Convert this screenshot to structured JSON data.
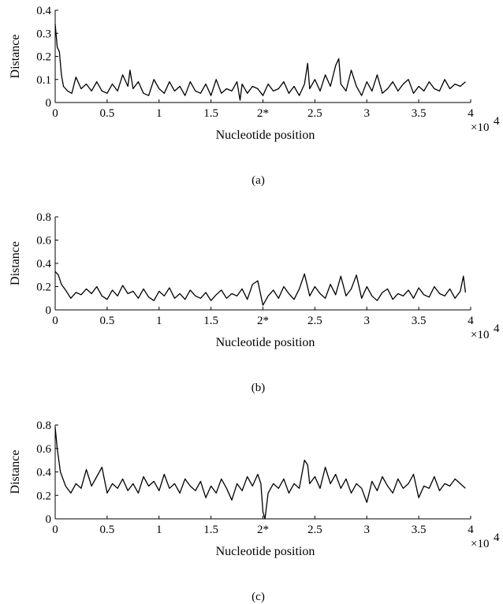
{
  "chart_data": [
    {
      "type": "line",
      "caption": "(a)",
      "xlabel": "Nucleotide position",
      "ylabel": "Distance",
      "x_multiplier": "×10",
      "x_exponent": "4",
      "xlim": [
        0,
        40000
      ],
      "ylim": [
        0,
        0.4
      ],
      "x_ticks": [
        "0",
        "0.5",
        "1",
        "1.5",
        "2*",
        "2.5",
        "3",
        "3.5",
        "4"
      ],
      "y_ticks": [
        "0",
        "0.1",
        "0.2",
        "0.3",
        "0.4"
      ],
      "series": [
        {
          "x": [
            0,
            200,
            400,
            600,
            800,
            1200,
            1600,
            2000,
            2500,
            3000,
            3500,
            4000,
            4500,
            5000,
            5500,
            6000,
            6500,
            7000,
            7200,
            7500,
            8000,
            8500,
            9000,
            9500,
            10000,
            10500,
            11000,
            11500,
            12000,
            12500,
            13000,
            13500,
            14000,
            14500,
            15000,
            15500,
            16000,
            16500,
            17000,
            17500,
            17800,
            18000,
            18500,
            19000,
            19500,
            20000,
            20500,
            21000,
            21500,
            22000,
            22500,
            23000,
            23500,
            24000,
            24300,
            24500,
            25000,
            25500,
            26000,
            26500,
            27000,
            27300,
            27500,
            28000,
            28500,
            29000,
            29500,
            30000,
            30500,
            31000,
            31500,
            32000,
            32500,
            33000,
            33500,
            34000,
            34500,
            35000,
            35500,
            36000,
            36500,
            37000,
            37500,
            38000,
            38500,
            39000,
            39500
          ],
          "y": [
            0.34,
            0.24,
            0.22,
            0.12,
            0.07,
            0.05,
            0.04,
            0.11,
            0.06,
            0.08,
            0.05,
            0.09,
            0.05,
            0.04,
            0.08,
            0.05,
            0.12,
            0.07,
            0.14,
            0.06,
            0.09,
            0.04,
            0.03,
            0.1,
            0.06,
            0.04,
            0.09,
            0.05,
            0.07,
            0.03,
            0.09,
            0.05,
            0.04,
            0.08,
            0.03,
            0.1,
            0.04,
            0.06,
            0.05,
            0.09,
            0.01,
            0.08,
            0.04,
            0.07,
            0.06,
            0.03,
            0.08,
            0.05,
            0.06,
            0.09,
            0.04,
            0.07,
            0.03,
            0.08,
            0.17,
            0.06,
            0.1,
            0.05,
            0.12,
            0.07,
            0.16,
            0.19,
            0.08,
            0.05,
            0.14,
            0.07,
            0.03,
            0.09,
            0.05,
            0.12,
            0.04,
            0.06,
            0.09,
            0.05,
            0.08,
            0.1,
            0.04,
            0.07,
            0.05,
            0.09,
            0.06,
            0.05,
            0.1,
            0.06,
            0.08,
            0.07,
            0.09
          ]
        }
      ]
    },
    {
      "type": "line",
      "caption": "(b)",
      "xlabel": "Nucleotide position",
      "ylabel": "Distance",
      "x_multiplier": "×10",
      "x_exponent": "4",
      "xlim": [
        0,
        40000
      ],
      "ylim": [
        0,
        0.8
      ],
      "x_ticks": [
        "0",
        "0.5",
        "1",
        "1.5",
        "2*",
        "2.5",
        "3",
        "3.5",
        "4"
      ],
      "y_ticks": [
        "0",
        "0.2",
        "0.4",
        "0.6",
        "0.8"
      ],
      "series": [
        {
          "x": [
            0,
            300,
            600,
            1000,
            1500,
            2000,
            2500,
            3000,
            3500,
            4000,
            4500,
            5000,
            5500,
            6000,
            6500,
            7000,
            7500,
            8000,
            8500,
            9000,
            9500,
            10000,
            10500,
            11000,
            11500,
            12000,
            12500,
            13000,
            13500,
            14000,
            14500,
            15000,
            15500,
            16000,
            16500,
            17000,
            17500,
            18000,
            18500,
            19000,
            19500,
            20000,
            20500,
            21000,
            21500,
            22000,
            22500,
            23000,
            23500,
            24000,
            24500,
            25000,
            25500,
            26000,
            26500,
            27000,
            27500,
            28000,
            28500,
            29000,
            29500,
            30000,
            30500,
            31000,
            31500,
            32000,
            32500,
            33000,
            33500,
            34000,
            34500,
            35000,
            35500,
            36000,
            36500,
            37000,
            37500,
            38000,
            38500,
            39000,
            39300,
            39500
          ],
          "y": [
            0.33,
            0.3,
            0.22,
            0.17,
            0.1,
            0.15,
            0.13,
            0.18,
            0.14,
            0.2,
            0.12,
            0.09,
            0.17,
            0.12,
            0.21,
            0.14,
            0.16,
            0.1,
            0.18,
            0.11,
            0.08,
            0.16,
            0.12,
            0.19,
            0.1,
            0.14,
            0.09,
            0.17,
            0.12,
            0.1,
            0.15,
            0.08,
            0.13,
            0.17,
            0.1,
            0.14,
            0.12,
            0.18,
            0.09,
            0.22,
            0.25,
            0.04,
            0.12,
            0.17,
            0.1,
            0.2,
            0.14,
            0.09,
            0.18,
            0.31,
            0.12,
            0.2,
            0.14,
            0.1,
            0.22,
            0.13,
            0.29,
            0.12,
            0.18,
            0.3,
            0.1,
            0.2,
            0.12,
            0.08,
            0.15,
            0.18,
            0.09,
            0.14,
            0.12,
            0.17,
            0.1,
            0.19,
            0.13,
            0.11,
            0.2,
            0.14,
            0.12,
            0.18,
            0.1,
            0.16,
            0.29,
            0.15
          ]
        }
      ]
    },
    {
      "type": "line",
      "caption": "(c)",
      "xlabel": "Nucleotide position",
      "ylabel": "Distance",
      "x_multiplier": "×10",
      "x_exponent": "4",
      "xlim": [
        0,
        40000
      ],
      "ylim": [
        0,
        0.8
      ],
      "x_ticks": [
        "0",
        "0.5",
        "1",
        "1.5",
        "2*",
        "2.5",
        "3",
        "3.5",
        "4"
      ],
      "y_ticks": [
        "0",
        "0.2",
        "0.4",
        "0.6",
        "0.8"
      ],
      "series": [
        {
          "x": [
            0,
            200,
            500,
            1000,
            1500,
            2000,
            2500,
            3000,
            3500,
            4000,
            4500,
            5000,
            5500,
            6000,
            6500,
            7000,
            7500,
            8000,
            8500,
            9000,
            9500,
            10000,
            10500,
            11000,
            11500,
            12000,
            12500,
            13000,
            13500,
            14000,
            14500,
            15000,
            15500,
            16000,
            16500,
            17000,
            17500,
            18000,
            18500,
            19000,
            19500,
            19800,
            20000,
            20200,
            20500,
            21000,
            21500,
            22000,
            22500,
            23000,
            23500,
            24000,
            24300,
            24500,
            25000,
            25500,
            26000,
            26500,
            27000,
            27500,
            28000,
            28500,
            29000,
            29500,
            30000,
            30500,
            31000,
            31500,
            32000,
            32500,
            33000,
            33500,
            34000,
            34500,
            35000,
            35500,
            36000,
            36500,
            37000,
            37500,
            38000,
            38500,
            39000,
            39500
          ],
          "y": [
            0.78,
            0.6,
            0.4,
            0.28,
            0.22,
            0.3,
            0.26,
            0.42,
            0.28,
            0.36,
            0.44,
            0.22,
            0.3,
            0.26,
            0.34,
            0.24,
            0.3,
            0.22,
            0.36,
            0.28,
            0.32,
            0.24,
            0.38,
            0.26,
            0.3,
            0.22,
            0.34,
            0.28,
            0.24,
            0.32,
            0.18,
            0.28,
            0.22,
            0.34,
            0.26,
            0.16,
            0.3,
            0.24,
            0.36,
            0.28,
            0.38,
            0.3,
            0.06,
            0.0,
            0.22,
            0.3,
            0.26,
            0.34,
            0.22,
            0.3,
            0.26,
            0.5,
            0.46,
            0.3,
            0.36,
            0.26,
            0.44,
            0.3,
            0.38,
            0.26,
            0.34,
            0.22,
            0.3,
            0.26,
            0.14,
            0.32,
            0.24,
            0.36,
            0.28,
            0.22,
            0.34,
            0.26,
            0.3,
            0.38,
            0.18,
            0.28,
            0.26,
            0.36,
            0.24,
            0.3,
            0.28,
            0.34,
            0.3,
            0.26
          ]
        }
      ]
    }
  ]
}
